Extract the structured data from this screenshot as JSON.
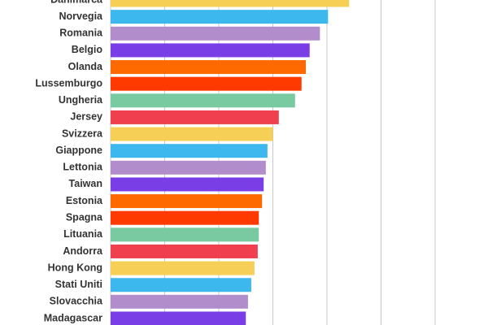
{
  "chart_data": {
    "type": "barh",
    "categories": [
      "Danimarca",
      "Norvegia",
      "Romania",
      "Belgio",
      "Olanda",
      "Lussemburgo",
      "Ungheria",
      "Jersey",
      "Svizzera",
      "Giappone",
      "Lettonia",
      "Taiwan",
      "Estonia",
      "Spagna",
      "Lituania",
      "Andorra",
      "Hong Kong",
      "Stati Uniti",
      "Slovacchia",
      "Madagascar"
    ],
    "values": [
      4.41,
      4.02,
      3.87,
      3.68,
      3.61,
      3.53,
      3.41,
      3.11,
      3.0,
      2.9,
      2.87,
      2.83,
      2.8,
      2.74,
      2.74,
      2.72,
      2.66,
      2.6,
      2.54,
      2.5
    ],
    "colors": [
      "#f6cf57",
      "#3cb8ef",
      "#b28dcb",
      "#7a3ee6",
      "#ff6a00",
      "#ff3a00",
      "#79c9a1",
      "#f04050"
    ],
    "xlim": [
      0,
      6.9
    ],
    "xticks": [
      0,
      1,
      2,
      3,
      4,
      5,
      6
    ],
    "grid": true
  }
}
